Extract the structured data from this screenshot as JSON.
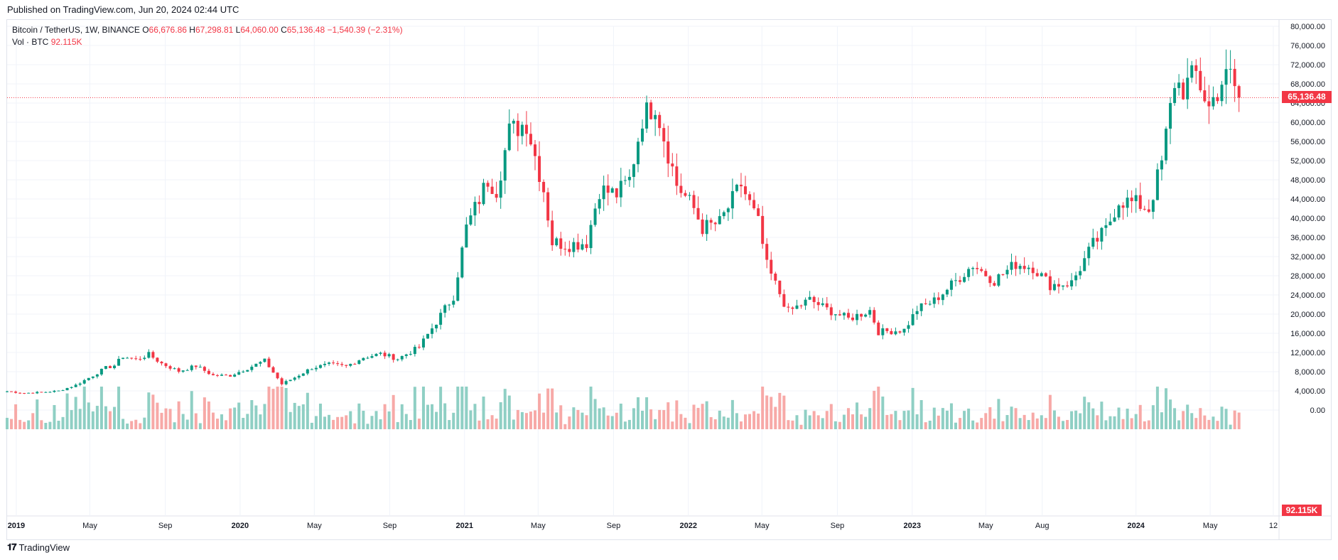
{
  "header": {
    "published": "Published on TradingView.com, Jun 20, 2024 02:44 UTC"
  },
  "legend": {
    "symbol": "Bitcoin / TetherUS, 1W, BINANCE",
    "o_label": "O",
    "o_value": "66,676.86",
    "h_label": "H",
    "h_value": "67,298.81",
    "l_label": "L",
    "l_value": "64,060.00",
    "c_label": "C",
    "c_value": "65,136.48",
    "change": "−1,540.39 (−2.31%)",
    "vol_label": "Vol · BTC",
    "vol_value": "92.115K"
  },
  "badges": {
    "last_price": "65,136.48",
    "last_volume": "92.115K"
  },
  "footer": {
    "brand": "TradingView"
  },
  "colors": {
    "up": "#089981",
    "down": "#f23645",
    "up_volume": "#8fcfc4",
    "down_volume": "#f7a9a7",
    "grid": "#f0f3fa",
    "axis_text": "#131722"
  },
  "chart_data": {
    "type": "candlestick",
    "title": "Bitcoin / TetherUS, 1W, BINANCE",
    "timeframe": "1W",
    "y_ticks": [
      0,
      4000,
      8000,
      12000,
      16000,
      20000,
      24000,
      28000,
      32000,
      36000,
      40000,
      44000,
      48000,
      52000,
      56000,
      60000,
      64000,
      68000,
      72000,
      76000,
      80000
    ],
    "y_tick_labels": [
      "0.00",
      "4,000.00",
      "8,000.00",
      "12,000.00",
      "16,000.00",
      "20,000.00",
      "24,000.00",
      "28,000.00",
      "32,000.00",
      "36,000.00",
      "40,000.00",
      "44,000.00",
      "48,000.00",
      "52,000.00",
      "56,000.00",
      "60,000.00",
      "64,000.00",
      "68,000.00",
      "72,000.00",
      "76,000.00",
      "80,000.00"
    ],
    "x_ticks": [
      {
        "label": "2019",
        "date": "2019-01-01",
        "bold": true
      },
      {
        "label": "May",
        "date": "2019-05-01",
        "bold": false
      },
      {
        "label": "Sep",
        "date": "2019-09-01",
        "bold": false
      },
      {
        "label": "2020",
        "date": "2020-01-01",
        "bold": true
      },
      {
        "label": "May",
        "date": "2020-05-01",
        "bold": false
      },
      {
        "label": "Sep",
        "date": "2020-09-01",
        "bold": false
      },
      {
        "label": "2021",
        "date": "2021-01-01",
        "bold": true
      },
      {
        "label": "May",
        "date": "2021-05-01",
        "bold": false
      },
      {
        "label": "Sep",
        "date": "2021-09-01",
        "bold": false
      },
      {
        "label": "2022",
        "date": "2022-01-01",
        "bold": true
      },
      {
        "label": "May",
        "date": "2022-05-01",
        "bold": false
      },
      {
        "label": "Sep",
        "date": "2022-09-01",
        "bold": false
      },
      {
        "label": "2023",
        "date": "2023-01-01",
        "bold": true
      },
      {
        "label": "May",
        "date": "2023-05-01",
        "bold": false
      },
      {
        "label": "Aug",
        "date": "2023-08-01",
        "bold": false
      },
      {
        "label": "2024",
        "date": "2024-01-01",
        "bold": true
      },
      {
        "label": "May",
        "date": "2024-05-01",
        "bold": false
      },
      {
        "label": "12",
        "date": "2024-08-12",
        "bold": false
      }
    ],
    "last_price": 65136.48,
    "candles_close": [
      {
        "date": "2018-12-17",
        "close": 3900
      },
      {
        "date": "2019-01-14",
        "close": 3550
      },
      {
        "date": "2019-02-11",
        "close": 3700
      },
      {
        "date": "2019-03-11",
        "close": 4000
      },
      {
        "date": "2019-04-08",
        "close": 5200
      },
      {
        "date": "2019-05-06",
        "close": 7200
      },
      {
        "date": "2019-05-27",
        "close": 8800
      },
      {
        "date": "2019-06-10",
        "close": 9300
      },
      {
        "date": "2019-06-24",
        "close": 11200
      },
      {
        "date": "2019-07-15",
        "close": 10500
      },
      {
        "date": "2019-08-05",
        "close": 11600
      },
      {
        "date": "2019-08-26",
        "close": 9700
      },
      {
        "date": "2019-09-23",
        "close": 8100
      },
      {
        "date": "2019-10-21",
        "close": 9200
      },
      {
        "date": "2019-11-18",
        "close": 7200
      },
      {
        "date": "2019-12-16",
        "close": 7200
      },
      {
        "date": "2020-01-13",
        "close": 8700
      },
      {
        "date": "2020-02-10",
        "close": 10300
      },
      {
        "date": "2020-03-09",
        "close": 5400
      },
      {
        "date": "2020-03-30",
        "close": 6800
      },
      {
        "date": "2020-04-27",
        "close": 8800
      },
      {
        "date": "2020-05-25",
        "close": 9500
      },
      {
        "date": "2020-06-22",
        "close": 9100
      },
      {
        "date": "2020-07-20",
        "close": 11000
      },
      {
        "date": "2020-08-17",
        "close": 11700
      },
      {
        "date": "2020-09-14",
        "close": 10700
      },
      {
        "date": "2020-10-19",
        "close": 13100
      },
      {
        "date": "2020-11-16",
        "close": 18400
      },
      {
        "date": "2020-12-14",
        "close": 23800
      },
      {
        "date": "2021-01-04",
        "close": 38000
      },
      {
        "date": "2021-02-08",
        "close": 48000
      },
      {
        "date": "2021-02-22",
        "close": 46000
      },
      {
        "date": "2021-03-15",
        "close": 58000
      },
      {
        "date": "2021-04-12",
        "close": 60000
      },
      {
        "date": "2021-05-10",
        "close": 46000
      },
      {
        "date": "2021-05-24",
        "close": 35000
      },
      {
        "date": "2021-06-21",
        "close": 34500
      },
      {
        "date": "2021-07-19",
        "close": 35000
      },
      {
        "date": "2021-08-09",
        "close": 46000
      },
      {
        "date": "2021-09-06",
        "close": 45000
      },
      {
        "date": "2021-09-27",
        "close": 48000
      },
      {
        "date": "2021-10-18",
        "close": 61000
      },
      {
        "date": "2021-11-08",
        "close": 64000
      },
      {
        "date": "2021-11-22",
        "close": 57000
      },
      {
        "date": "2021-12-13",
        "close": 47000
      },
      {
        "date": "2022-01-10",
        "close": 42000
      },
      {
        "date": "2022-01-24",
        "close": 38000
      },
      {
        "date": "2022-02-21",
        "close": 39000
      },
      {
        "date": "2022-03-28",
        "close": 47000
      },
      {
        "date": "2022-04-25",
        "close": 39000
      },
      {
        "date": "2022-05-09",
        "close": 30000
      },
      {
        "date": "2022-06-13",
        "close": 20500
      },
      {
        "date": "2022-07-18",
        "close": 23000
      },
      {
        "date": "2022-08-15",
        "close": 21000
      },
      {
        "date": "2022-09-19",
        "close": 19000
      },
      {
        "date": "2022-10-24",
        "close": 20800
      },
      {
        "date": "2022-11-07",
        "close": 16300
      },
      {
        "date": "2022-12-19",
        "close": 16700
      },
      {
        "date": "2023-01-09",
        "close": 21000
      },
      {
        "date": "2023-02-06",
        "close": 22800
      },
      {
        "date": "2023-03-13",
        "close": 26900
      },
      {
        "date": "2023-04-10",
        "close": 30300
      },
      {
        "date": "2023-05-15",
        "close": 27000
      },
      {
        "date": "2023-06-19",
        "close": 30500
      },
      {
        "date": "2023-07-17",
        "close": 29800
      },
      {
        "date": "2023-08-14",
        "close": 26100
      },
      {
        "date": "2023-09-18",
        "close": 26500
      },
      {
        "date": "2023-10-23",
        "close": 34500
      },
      {
        "date": "2023-11-13",
        "close": 37500
      },
      {
        "date": "2023-12-04",
        "close": 43800
      },
      {
        "date": "2024-01-08",
        "close": 42800
      },
      {
        "date": "2024-01-22",
        "close": 42000
      },
      {
        "date": "2024-02-12",
        "close": 51500
      },
      {
        "date": "2024-03-04",
        "close": 68500
      },
      {
        "date": "2024-03-18",
        "close": 67000
      },
      {
        "date": "2024-04-08",
        "close": 70000
      },
      {
        "date": "2024-04-29",
        "close": 63000
      },
      {
        "date": "2024-05-20",
        "close": 68500
      },
      {
        "date": "2024-06-03",
        "close": 69600
      },
      {
        "date": "2024-06-17",
        "close": 65136.48
      }
    ],
    "volume_ticks_label": [
      "0.00"
    ]
  }
}
